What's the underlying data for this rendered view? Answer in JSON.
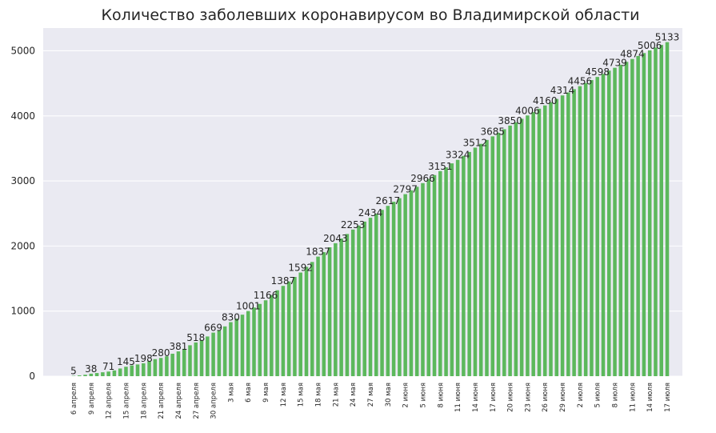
{
  "chart_data": {
    "type": "bar",
    "title": "Количество заболевших коронавирусом во Владимирской области",
    "xlabel": "",
    "ylabel": "",
    "ylim": [
      0,
      5350
    ],
    "yticks": [
      0,
      1000,
      2000,
      3000,
      4000,
      5000
    ],
    "grid": true,
    "bar_color": "#5cb85c",
    "background_color": "#eaeaf2",
    "grid_color": "#ffffff",
    "tick_labels": [
      "6 апреля",
      "9 апреля",
      "12 апреля",
      "15 апреля",
      "18 апреля",
      "21 апреля",
      "24 апреля",
      "27 апреля",
      "30 апреля",
      "3 мая",
      "6 мая",
      "9 мая",
      "12 мая",
      "15 мая",
      "18 мая",
      "21 мая",
      "24 мая",
      "27 мая",
      "30 мая",
      "2 июня",
      "5 июня",
      "8 июня",
      "11 июня",
      "14 июня",
      "17 июня",
      "20 июня",
      "23 июня",
      "26 июня",
      "29 июня",
      "2 июля",
      "5 июля",
      "8 июля",
      "11 июля",
      "14 июля",
      "17 июля"
    ],
    "values": [
      5,
      12,
      22,
      38,
      48,
      60,
      71,
      88,
      118,
      145,
      165,
      180,
      198,
      232,
      262,
      280,
      305,
      345,
      381,
      420,
      475,
      518,
      555,
      610,
      669,
      705,
      765,
      830,
      885,
      945,
      1001,
      1055,
      1110,
      1166,
      1245,
      1320,
      1387,
      1455,
      1525,
      1592,
      1680,
      1755,
      1837,
      1905,
      1980,
      2043,
      2115,
      2185,
      2253,
      2315,
      2375,
      2434,
      2495,
      2555,
      2617,
      2680,
      2735,
      2797,
      2856,
      2910,
      2966,
      3030,
      3090,
      3151,
      3210,
      3270,
      3324,
      3385,
      3445,
      3512,
      3570,
      3630,
      3685,
      3740,
      3795,
      3850,
      3900,
      3955,
      4006,
      4060,
      4110,
      4160,
      4210,
      4260,
      4314,
      4360,
      4410,
      4456,
      4505,
      4550,
      4598,
      4645,
      4695,
      4739,
      4785,
      4830,
      4874,
      4920,
      4965,
      5006,
      5050,
      5090,
      5133
    ],
    "data_labels": [
      {
        "index": 0,
        "text": "5"
      },
      {
        "index": 3,
        "text": "38"
      },
      {
        "index": 6,
        "text": "71"
      },
      {
        "index": 9,
        "text": "145"
      },
      {
        "index": 12,
        "text": "198"
      },
      {
        "index": 15,
        "text": "280"
      },
      {
        "index": 18,
        "text": "381"
      },
      {
        "index": 21,
        "text": "518"
      },
      {
        "index": 24,
        "text": "669"
      },
      {
        "index": 27,
        "text": "830"
      },
      {
        "index": 30,
        "text": "1001"
      },
      {
        "index": 33,
        "text": "1166"
      },
      {
        "index": 36,
        "text": "1387"
      },
      {
        "index": 39,
        "text": "1592"
      },
      {
        "index": 42,
        "text": "1837"
      },
      {
        "index": 45,
        "text": "2043"
      },
      {
        "index": 48,
        "text": "2253"
      },
      {
        "index": 51,
        "text": "2434"
      },
      {
        "index": 54,
        "text": "2617"
      },
      {
        "index": 57,
        "text": "2797"
      },
      {
        "index": 60,
        "text": "2966"
      },
      {
        "index": 63,
        "text": "3151"
      },
      {
        "index": 66,
        "text": "3324"
      },
      {
        "index": 69,
        "text": "3512"
      },
      {
        "index": 72,
        "text": "3685"
      },
      {
        "index": 75,
        "text": "3850"
      },
      {
        "index": 78,
        "text": "4006"
      },
      {
        "index": 81,
        "text": "4160"
      },
      {
        "index": 84,
        "text": "4314"
      },
      {
        "index": 87,
        "text": "4456"
      },
      {
        "index": 90,
        "text": "4598"
      },
      {
        "index": 93,
        "text": "4739"
      },
      {
        "index": 96,
        "text": "4874"
      },
      {
        "index": 99,
        "text": "5006"
      },
      {
        "index": 102,
        "text": "5133"
      }
    ]
  }
}
